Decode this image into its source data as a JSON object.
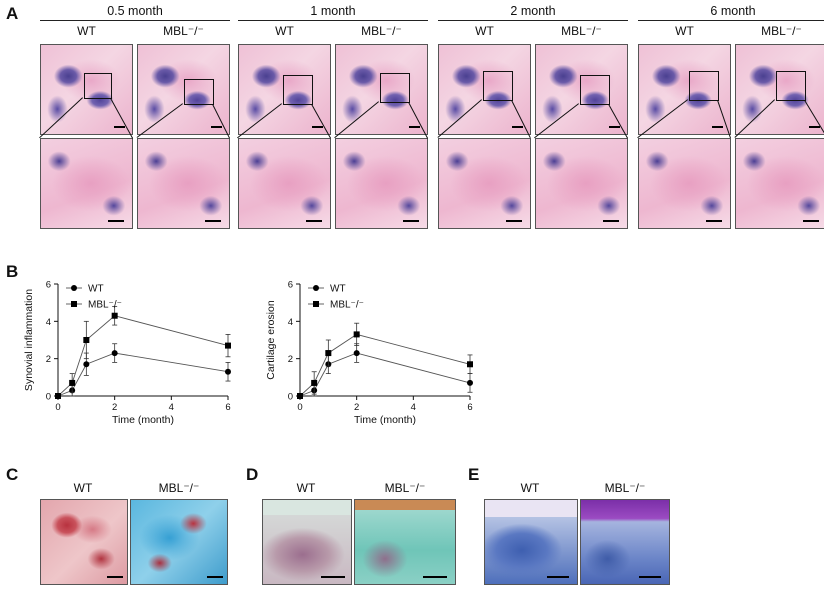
{
  "panel_a": {
    "letter": "A",
    "groups": [
      {
        "title": "0.5 month",
        "wt": "WT",
        "ko": "MBL⁻/⁻"
      },
      {
        "title": "1 month",
        "wt": "WT",
        "ko": "MBL⁻/⁻"
      },
      {
        "title": "2 month",
        "wt": "WT",
        "ko": "MBL⁻/⁻"
      },
      {
        "title": "6 month",
        "wt": "WT",
        "ko": "MBL⁻/⁻"
      }
    ]
  },
  "panel_b": {
    "letter": "B"
  },
  "panel_c": {
    "letter": "C",
    "wt": "WT",
    "ko": "MBL⁻/⁻"
  },
  "panel_d": {
    "letter": "D",
    "wt": "WT",
    "ko": "MBL⁻/⁻"
  },
  "panel_e": {
    "letter": "E",
    "wt": "WT",
    "ko": "MBL⁻/⁻"
  },
  "chart_data": [
    {
      "type": "line",
      "title": "",
      "xlabel": "Time (month)",
      "ylabel": "Synovial inflammation",
      "x": [
        0,
        0.5,
        1,
        2,
        6
      ],
      "xlim": [
        0,
        6
      ],
      "ylim": [
        0,
        6
      ],
      "xticks": [
        0,
        2,
        4,
        6
      ],
      "yticks": [
        0,
        2,
        4,
        6
      ],
      "legend_position": "top-left",
      "series": [
        {
          "name": "WT",
          "marker": "circle",
          "values": [
            0,
            0.3,
            1.7,
            2.3,
            1.3
          ],
          "err": [
            0,
            0.3,
            0.6,
            0.5,
            0.5
          ]
        },
        {
          "name": "MBL⁻/⁻",
          "marker": "square",
          "values": [
            0,
            0.7,
            3.0,
            4.3,
            2.7
          ],
          "err": [
            0,
            0.5,
            1.0,
            0.5,
            0.6
          ]
        }
      ]
    },
    {
      "type": "line",
      "title": "",
      "xlabel": "Time (month)",
      "ylabel": "Cartilage erosion",
      "x": [
        0,
        0.5,
        1,
        2,
        6
      ],
      "xlim": [
        0,
        6
      ],
      "ylim": [
        0,
        6
      ],
      "xticks": [
        0,
        2,
        4,
        6
      ],
      "yticks": [
        0,
        2,
        4,
        6
      ],
      "legend_position": "top-left",
      "series": [
        {
          "name": "WT",
          "marker": "circle",
          "values": [
            0,
            0.3,
            1.7,
            2.3,
            0.7
          ],
          "err": [
            0,
            0.3,
            0.5,
            0.5,
            0.5
          ]
        },
        {
          "name": "MBL⁻/⁻",
          "marker": "square",
          "values": [
            0,
            0.7,
            2.3,
            3.3,
            1.7
          ],
          "err": [
            0,
            0.6,
            0.7,
            0.6,
            0.5
          ]
        }
      ]
    }
  ]
}
